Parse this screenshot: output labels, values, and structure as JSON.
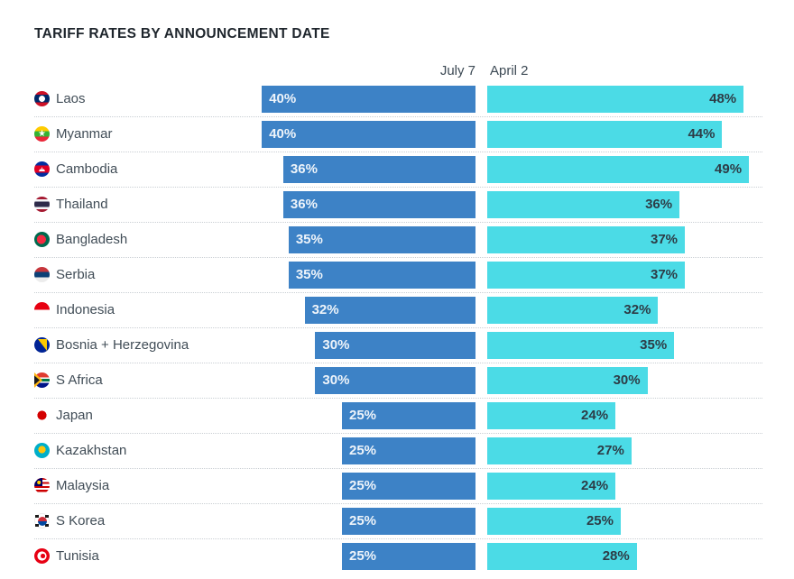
{
  "title": "TARIFF RATES BY ANNOUNCEMENT DATE",
  "header": {
    "left_series_label": "July 7",
    "right_series_label": "April 2"
  },
  "colors": {
    "july7_bar": "#3d82c6",
    "april2_bar": "#4bdbe6",
    "title_text": "#1e252c",
    "country_text": "#414d57",
    "july_value_text": "#eef4fa",
    "april_value_text": "#2d3c46",
    "separator": "#c9ced3"
  },
  "chart_data": {
    "type": "bar",
    "orientation": "horizontal",
    "title": "TARIFF RATES BY ANNOUNCEMENT DATE",
    "unit": "%",
    "value_labels_shown": true,
    "legend_position": "top",
    "series_names": [
      "July 7",
      "April 2"
    ],
    "categories": [
      "Laos",
      "Myanmar",
      "Cambodia",
      "Thailand",
      "Bangladesh",
      "Serbia",
      "Indonesia",
      "Bosnia + Herzegovina",
      "S Africa",
      "Japan",
      "Kazakhstan",
      "Malaysia",
      "S Korea",
      "Tunisia"
    ],
    "series": [
      {
        "name": "July 7",
        "values": [
          40,
          40,
          36,
          36,
          35,
          35,
          32,
          30,
          30,
          25,
          25,
          25,
          25,
          25
        ]
      },
      {
        "name": "April 2",
        "values": [
          48,
          44,
          49,
          36,
          37,
          37,
          32,
          35,
          30,
          24,
          27,
          24,
          25,
          28
        ]
      }
    ],
    "rows": [
      {
        "country": "Laos",
        "flag": "laos",
        "july7": 40,
        "april2": 48
      },
      {
        "country": "Myanmar",
        "flag": "myanmar",
        "july7": 40,
        "april2": 44
      },
      {
        "country": "Cambodia",
        "flag": "cambodia",
        "july7": 36,
        "april2": 49
      },
      {
        "country": "Thailand",
        "flag": "thailand",
        "july7": 36,
        "april2": 36
      },
      {
        "country": "Bangladesh",
        "flag": "bangladesh",
        "july7": 35,
        "april2": 37
      },
      {
        "country": "Serbia",
        "flag": "serbia",
        "july7": 35,
        "april2": 37
      },
      {
        "country": "Indonesia",
        "flag": "indonesia",
        "july7": 32,
        "april2": 32
      },
      {
        "country": "Bosnia + Herzegovina",
        "flag": "bosnia",
        "july7": 30,
        "april2": 35
      },
      {
        "country": "S Africa",
        "flag": "safrica",
        "july7": 30,
        "april2": 30
      },
      {
        "country": "Japan",
        "flag": "japan",
        "july7": 25,
        "april2": 24
      },
      {
        "country": "Kazakhstan",
        "flag": "kazakhstan",
        "july7": 25,
        "april2": 27
      },
      {
        "country": "Malaysia",
        "flag": "malaysia",
        "july7": 25,
        "april2": 24
      },
      {
        "country": "S Korea",
        "flag": "skorea",
        "july7": 25,
        "april2": 25
      },
      {
        "country": "Tunisia",
        "flag": "tunisia",
        "july7": 25,
        "april2": 28
      }
    ]
  }
}
